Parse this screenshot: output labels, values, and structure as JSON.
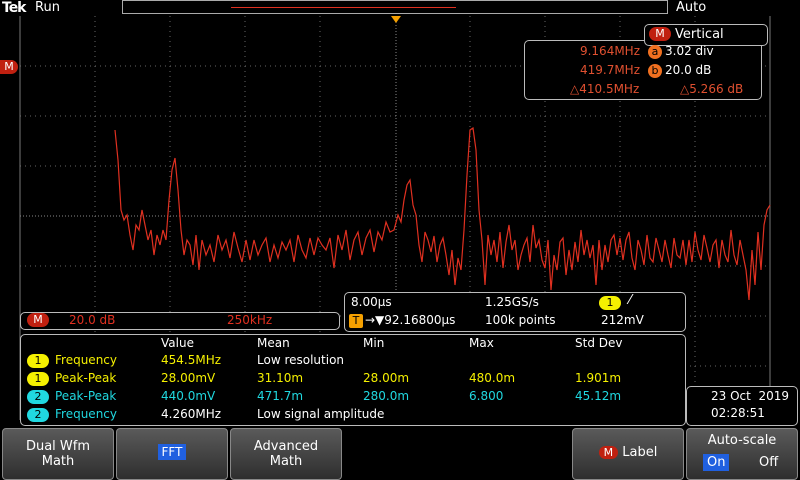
{
  "status_bar": {
    "brand": "Tek",
    "state": "Run",
    "trigger_mode": "Auto"
  },
  "left_marker": "M",
  "cursor_readout": {
    "source": "M",
    "title": "Vertical",
    "a": {
      "frequency": "9.164MHz",
      "label": "a",
      "value": "3.02 div"
    },
    "b": {
      "frequency": "419.7MHz",
      "label": "b",
      "value": "20.0 dB"
    },
    "delta": {
      "frequency": "△410.5MHz",
      "value": "△5.266 dB"
    }
  },
  "math_label": {
    "badge": "M",
    "scale": "20.0 dB",
    "span": "250kHz"
  },
  "horizontal": {
    "time_per_div": "8.00µs",
    "sample_rate": "1.25GS/s",
    "trigger_channel": "1",
    "trigger_badge": "T",
    "position": "→▼92.16800µs",
    "record_length": "100k points",
    "trigger_level": "212mV"
  },
  "measurements": {
    "headers": [
      "Value",
      "Mean",
      "Min",
      "Max",
      "Std Dev"
    ],
    "rows": [
      [
        "1",
        "Frequency",
        "454.5MHz",
        "Low resolution"
      ],
      [
        "1",
        "Peak-Peak",
        "28.00mV",
        "31.10m",
        "28.00m",
        "480.0m",
        "1.901m"
      ],
      [
        "2",
        "Peak-Peak",
        "440.0mV",
        "471.7m",
        "280.0m",
        "6.800",
        "45.12m"
      ],
      [
        "2",
        "Frequency",
        "4.260MHz",
        "Low signal amplitude"
      ]
    ]
  },
  "datetime": {
    "date": "23 Oct  2019",
    "time": "02:28:51"
  },
  "buttons": {
    "dual": [
      "Dual Wfm",
      "Math"
    ],
    "fft": "FFT",
    "advanced": [
      "Advanced",
      "Math"
    ],
    "label_badge": "M",
    "label": "Label",
    "autoscale": "Auto-scale",
    "on": "On",
    "off": "Off"
  }
}
